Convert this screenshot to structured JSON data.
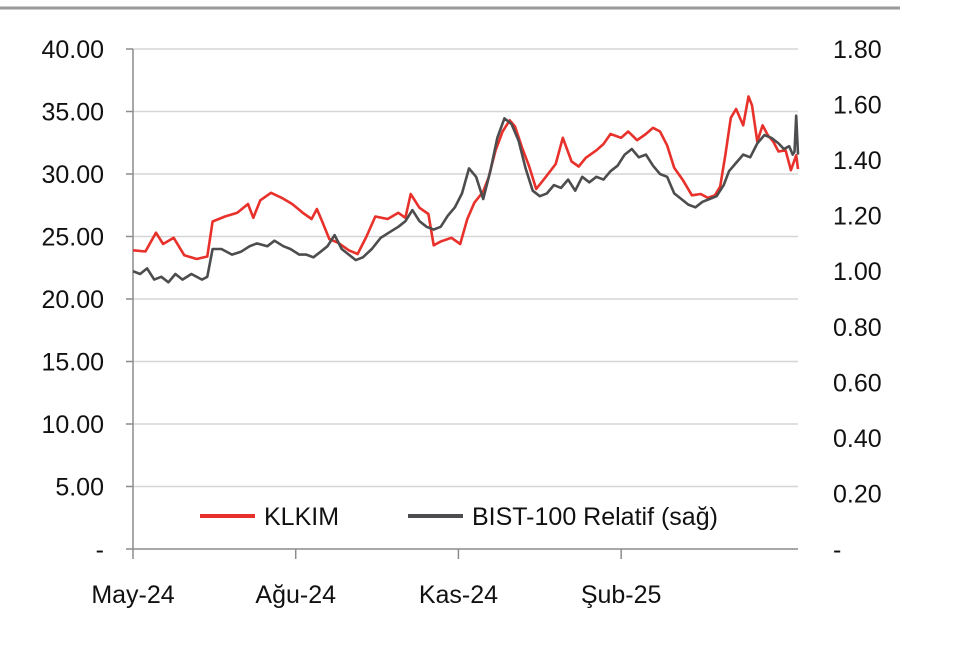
{
  "chart_data": {
    "type": "line",
    "title": "",
    "xlabel": "",
    "ylabel": "",
    "x_ticks": [
      "May-24",
      "Ağu-24",
      "Kas-24",
      "Şub-25"
    ],
    "x_range": [
      "2024-05-01",
      "2025-05-12"
    ],
    "y_left": {
      "ylim": [
        0,
        40
      ],
      "tick_values": [
        0,
        5,
        10,
        15,
        20,
        25,
        30,
        35,
        40
      ],
      "tick_labels": [
        "-",
        "5.00",
        "10.00",
        "15.00",
        "20.00",
        "25.00",
        "30.00",
        "35.00",
        "40.00"
      ]
    },
    "y_right": {
      "ylim": [
        0,
        1.8
      ],
      "tick_values": [
        0,
        0.2,
        0.4,
        0.6,
        0.8,
        1.0,
        1.2,
        1.4,
        1.6,
        1.8
      ],
      "tick_labels": [
        "-",
        "0.20",
        "0.40",
        "0.60",
        "0.80",
        "1.00",
        "1.20",
        "1.40",
        "1.60",
        "1.80"
      ]
    },
    "grid": true,
    "legend_placement": "bottom",
    "series": [
      {
        "name": "KLKIM",
        "axis": "left",
        "color": "#e8312a",
        "points": [
          [
            "2024-05-01",
            23.9
          ],
          [
            "2024-05-08",
            23.8
          ],
          [
            "2024-05-14",
            25.3
          ],
          [
            "2024-05-18",
            24.4
          ],
          [
            "2024-05-24",
            24.9
          ],
          [
            "2024-05-30",
            23.5
          ],
          [
            "2024-06-06",
            23.2
          ],
          [
            "2024-06-12",
            23.4
          ],
          [
            "2024-06-15",
            26.2
          ],
          [
            "2024-06-22",
            26.6
          ],
          [
            "2024-06-29",
            26.9
          ],
          [
            "2024-07-05",
            27.6
          ],
          [
            "2024-07-08",
            26.5
          ],
          [
            "2024-07-12",
            27.9
          ],
          [
            "2024-07-18",
            28.5
          ],
          [
            "2024-07-24",
            28.1
          ],
          [
            "2024-07-30",
            27.6
          ],
          [
            "2024-08-05",
            26.9
          ],
          [
            "2024-08-10",
            26.4
          ],
          [
            "2024-08-13",
            27.2
          ],
          [
            "2024-08-16",
            26.2
          ],
          [
            "2024-08-20",
            24.8
          ],
          [
            "2024-08-25",
            24.5
          ],
          [
            "2024-08-31",
            23.9
          ],
          [
            "2024-09-05",
            23.6
          ],
          [
            "2024-09-10",
            25.0
          ],
          [
            "2024-09-15",
            26.6
          ],
          [
            "2024-09-22",
            26.4
          ],
          [
            "2024-09-28",
            26.9
          ],
          [
            "2024-10-02",
            26.5
          ],
          [
            "2024-10-05",
            28.4
          ],
          [
            "2024-10-10",
            27.3
          ],
          [
            "2024-10-15",
            26.8
          ],
          [
            "2024-10-18",
            24.3
          ],
          [
            "2024-10-22",
            24.6
          ],
          [
            "2024-10-28",
            24.9
          ],
          [
            "2024-11-02",
            24.4
          ],
          [
            "2024-11-06",
            26.4
          ],
          [
            "2024-11-10",
            27.7
          ],
          [
            "2024-11-15",
            28.6
          ],
          [
            "2024-11-18",
            29.7
          ],
          [
            "2024-11-22",
            31.9
          ],
          [
            "2024-11-26",
            33.4
          ],
          [
            "2024-11-30",
            34.3
          ],
          [
            "2024-12-03",
            33.8
          ],
          [
            "2024-12-07",
            32.1
          ],
          [
            "2024-12-11",
            30.6
          ],
          [
            "2024-12-15",
            28.8
          ],
          [
            "2024-12-20",
            29.7
          ],
          [
            "2024-12-26",
            30.8
          ],
          [
            "2024-12-30",
            32.9
          ],
          [
            "2025-01-04",
            31.0
          ],
          [
            "2025-01-08",
            30.6
          ],
          [
            "2025-01-12",
            31.3
          ],
          [
            "2025-01-18",
            31.9
          ],
          [
            "2025-01-22",
            32.4
          ],
          [
            "2025-01-26",
            33.2
          ],
          [
            "2025-02-01",
            32.9
          ],
          [
            "2025-02-05",
            33.4
          ],
          [
            "2025-02-10",
            32.7
          ],
          [
            "2025-02-15",
            33.2
          ],
          [
            "2025-02-19",
            33.7
          ],
          [
            "2025-02-23",
            33.4
          ],
          [
            "2025-02-27",
            32.3
          ],
          [
            "2025-03-03",
            30.5
          ],
          [
            "2025-03-08",
            29.5
          ],
          [
            "2025-03-13",
            28.3
          ],
          [
            "2025-03-18",
            28.4
          ],
          [
            "2025-03-22",
            28.1
          ],
          [
            "2025-03-26",
            28.3
          ],
          [
            "2025-03-29",
            29.0
          ],
          [
            "2025-04-01",
            31.6
          ],
          [
            "2025-04-04",
            34.5
          ],
          [
            "2025-04-07",
            35.2
          ],
          [
            "2025-04-11",
            33.9
          ],
          [
            "2025-04-14",
            36.2
          ],
          [
            "2025-04-16",
            35.5
          ],
          [
            "2025-04-19",
            32.6
          ],
          [
            "2025-04-22",
            33.9
          ],
          [
            "2025-04-25",
            33.1
          ],
          [
            "2025-04-28",
            32.6
          ],
          [
            "2025-05-01",
            31.8
          ],
          [
            "2025-05-05",
            31.9
          ],
          [
            "2025-05-08",
            30.3
          ],
          [
            "2025-05-11",
            31.5
          ],
          [
            "2025-05-12",
            30.4
          ]
        ]
      },
      {
        "name": "BIST-100 Relatif (sağ)",
        "axis": "right",
        "color": "#4d4d4f",
        "points": [
          [
            "2024-05-01",
            1.0
          ],
          [
            "2024-05-05",
            0.99
          ],
          [
            "2024-05-09",
            1.01
          ],
          [
            "2024-05-13",
            0.97
          ],
          [
            "2024-05-17",
            0.98
          ],
          [
            "2024-05-21",
            0.96
          ],
          [
            "2024-05-25",
            0.99
          ],
          [
            "2024-05-29",
            0.97
          ],
          [
            "2024-06-03",
            0.99
          ],
          [
            "2024-06-09",
            0.97
          ],
          [
            "2024-06-12",
            0.98
          ],
          [
            "2024-06-15",
            1.08
          ],
          [
            "2024-06-20",
            1.08
          ],
          [
            "2024-06-26",
            1.06
          ],
          [
            "2024-07-01",
            1.07
          ],
          [
            "2024-07-06",
            1.09
          ],
          [
            "2024-07-10",
            1.1
          ],
          [
            "2024-07-16",
            1.09
          ],
          [
            "2024-07-20",
            1.11
          ],
          [
            "2024-07-25",
            1.09
          ],
          [
            "2024-07-29",
            1.08
          ],
          [
            "2024-08-03",
            1.06
          ],
          [
            "2024-08-07",
            1.06
          ],
          [
            "2024-08-11",
            1.05
          ],
          [
            "2024-08-15",
            1.07
          ],
          [
            "2024-08-19",
            1.09
          ],
          [
            "2024-08-23",
            1.13
          ],
          [
            "2024-08-27",
            1.08
          ],
          [
            "2024-08-31",
            1.06
          ],
          [
            "2024-09-04",
            1.04
          ],
          [
            "2024-09-08",
            1.05
          ],
          [
            "2024-09-13",
            1.08
          ],
          [
            "2024-09-18",
            1.12
          ],
          [
            "2024-09-23",
            1.14
          ],
          [
            "2024-09-28",
            1.16
          ],
          [
            "2024-10-02",
            1.18
          ],
          [
            "2024-10-06",
            1.22
          ],
          [
            "2024-10-10",
            1.18
          ],
          [
            "2024-10-14",
            1.16
          ],
          [
            "2024-10-18",
            1.15
          ],
          [
            "2024-10-22",
            1.16
          ],
          [
            "2024-10-26",
            1.2
          ],
          [
            "2024-10-30",
            1.23
          ],
          [
            "2024-11-03",
            1.28
          ],
          [
            "2024-11-07",
            1.37
          ],
          [
            "2024-11-11",
            1.34
          ],
          [
            "2024-11-15",
            1.26
          ],
          [
            "2024-11-19",
            1.36
          ],
          [
            "2024-11-23",
            1.48
          ],
          [
            "2024-11-27",
            1.55
          ],
          [
            "2024-12-01",
            1.53
          ],
          [
            "2024-12-05",
            1.47
          ],
          [
            "2024-12-09",
            1.37
          ],
          [
            "2024-12-13",
            1.29
          ],
          [
            "2024-12-17",
            1.27
          ],
          [
            "2024-12-21",
            1.28
          ],
          [
            "2024-12-25",
            1.31
          ],
          [
            "2024-12-29",
            1.3
          ],
          [
            "2025-01-02",
            1.33
          ],
          [
            "2025-01-06",
            1.29
          ],
          [
            "2025-01-10",
            1.34
          ],
          [
            "2025-01-14",
            1.32
          ],
          [
            "2025-01-18",
            1.34
          ],
          [
            "2025-01-22",
            1.33
          ],
          [
            "2025-01-26",
            1.36
          ],
          [
            "2025-01-30",
            1.38
          ],
          [
            "2025-02-03",
            1.42
          ],
          [
            "2025-02-07",
            1.44
          ],
          [
            "2025-02-11",
            1.41
          ],
          [
            "2025-02-15",
            1.42
          ],
          [
            "2025-02-19",
            1.38
          ],
          [
            "2025-02-23",
            1.35
          ],
          [
            "2025-02-27",
            1.34
          ],
          [
            "2025-03-03",
            1.28
          ],
          [
            "2025-03-07",
            1.26
          ],
          [
            "2025-03-11",
            1.24
          ],
          [
            "2025-03-15",
            1.23
          ],
          [
            "2025-03-19",
            1.25
          ],
          [
            "2025-03-23",
            1.26
          ],
          [
            "2025-03-27",
            1.27
          ],
          [
            "2025-03-31",
            1.31
          ],
          [
            "2025-04-03",
            1.36
          ],
          [
            "2025-04-07",
            1.39
          ],
          [
            "2025-04-11",
            1.42
          ],
          [
            "2025-04-15",
            1.41
          ],
          [
            "2025-04-19",
            1.46
          ],
          [
            "2025-04-23",
            1.49
          ],
          [
            "2025-04-27",
            1.48
          ],
          [
            "2025-05-01",
            1.46
          ],
          [
            "2025-05-04",
            1.44
          ],
          [
            "2025-05-07",
            1.45
          ],
          [
            "2025-05-09",
            1.42
          ],
          [
            "2025-05-10",
            1.43
          ],
          [
            "2025-05-11",
            1.56
          ],
          [
            "2025-05-12",
            1.42
          ]
        ]
      }
    ]
  }
}
